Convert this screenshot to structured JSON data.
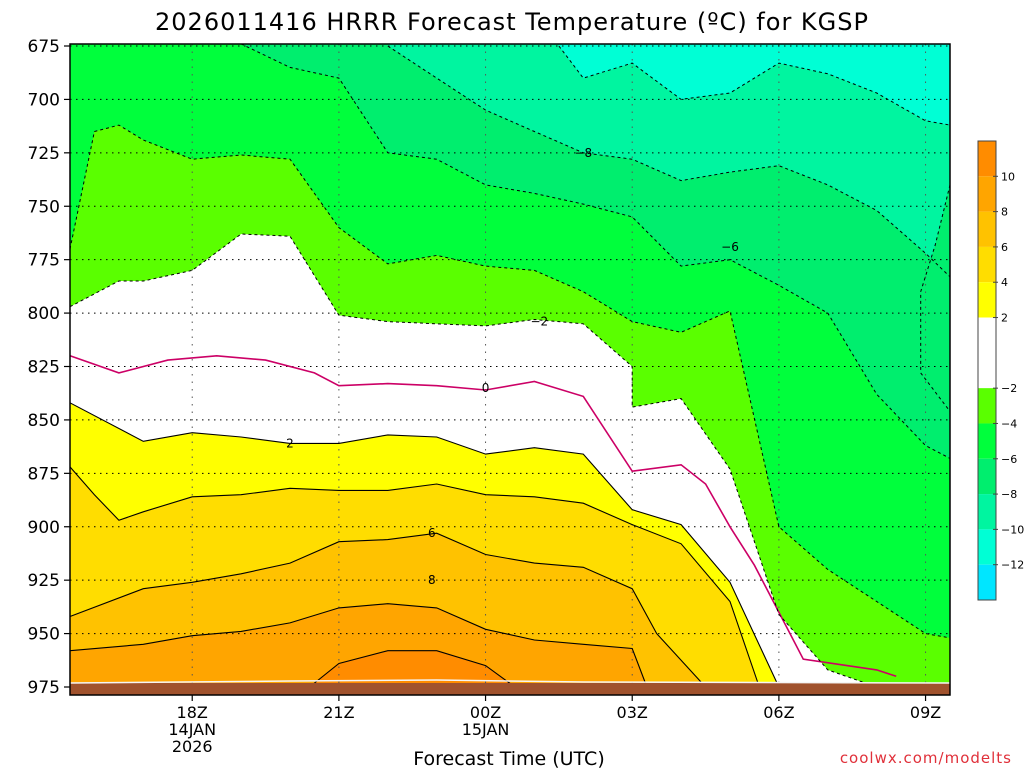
{
  "chart_data": {
    "type": "contour",
    "title": "2026011416 HRRR Forecast Temperature (ºC) for KGSP",
    "xlabel": "Forecast Time (UTC)",
    "ylabel": "",
    "credit": "coolwx.com/modelts",
    "y_axis": {
      "ticks": [
        675,
        700,
        725,
        750,
        775,
        800,
        825,
        850,
        875,
        900,
        925,
        950,
        975
      ],
      "labels": [
        "675",
        "700",
        "725",
        "750",
        "775",
        "800",
        "825",
        "850",
        "875",
        "900",
        "925",
        "950",
        "975"
      ],
      "range": [
        975,
        675
      ]
    },
    "x_axis": {
      "range_hours": [
        15.5,
        33.5
      ],
      "ticks": [
        {
          "hour": 18,
          "lines": [
            "18Z",
            "14JAN",
            "2026"
          ]
        },
        {
          "hour": 21,
          "lines": [
            "21Z"
          ]
        },
        {
          "hour": 24,
          "lines": [
            "00Z",
            "15JAN"
          ]
        },
        {
          "hour": 27,
          "lines": [
            "03Z"
          ]
        },
        {
          "hour": 30,
          "lines": [
            "06Z"
          ]
        },
        {
          "hour": 33,
          "lines": [
            "09Z"
          ]
        }
      ]
    },
    "grid": true,
    "colorbar": {
      "min": -14,
      "max": 12,
      "labels": [
        "10",
        "8",
        "6",
        "4",
        "2",
        "−2",
        "−4",
        "−6",
        "−8",
        "−10",
        "−12"
      ],
      "bins": [
        {
          "from": 10,
          "to": 12,
          "color": "#ff8c00"
        },
        {
          "from": 8,
          "to": 10,
          "color": "#ffa500"
        },
        {
          "from": 6,
          "to": 8,
          "color": "#ffc200"
        },
        {
          "from": 4,
          "to": 6,
          "color": "#ffdd00"
        },
        {
          "from": 2,
          "to": 4,
          "color": "#ffff00"
        },
        {
          "from": -2,
          "to": 2,
          "color": "#ffffff"
        },
        {
          "from": -4,
          "to": -2,
          "color": "#5aff00"
        },
        {
          "from": -6,
          "to": -4,
          "color": "#00ff3c"
        },
        {
          "from": -8,
          "to": -6,
          "color": "#00ee6e"
        },
        {
          "from": -10,
          "to": -8,
          "color": "#00f5a0"
        },
        {
          "from": -12,
          "to": -10,
          "color": "#00ffd5"
        },
        {
          "from": -14,
          "to": -12,
          "color": "#00e6ff"
        }
      ]
    },
    "contours": [
      {
        "level": 8,
        "style": "solid",
        "label_at": {
          "hour": 22.9,
          "pressure": 925
        },
        "points": [
          [
            15.5,
            958
          ],
          [
            17,
            955
          ],
          [
            18,
            951
          ],
          [
            19,
            949
          ],
          [
            20,
            945
          ],
          [
            21,
            938
          ],
          [
            22,
            936
          ],
          [
            23,
            938
          ],
          [
            24,
            948
          ],
          [
            25,
            953
          ],
          [
            26,
            955
          ],
          [
            27,
            957
          ],
          [
            27.3,
            975
          ]
        ]
      },
      {
        "level": 6,
        "style": "solid",
        "label_at": {
          "hour": 22.9,
          "pressure": 903
        },
        "points": [
          [
            15.5,
            942
          ],
          [
            17,
            929
          ],
          [
            18,
            926
          ],
          [
            19,
            922
          ],
          [
            20,
            917
          ],
          [
            21,
            907
          ],
          [
            22,
            906
          ],
          [
            23,
            903
          ],
          [
            24,
            913
          ],
          [
            25,
            917
          ],
          [
            26,
            919
          ],
          [
            27,
            929
          ],
          [
            27.5,
            950
          ],
          [
            28.5,
            975
          ]
        ]
      },
      {
        "level": 4,
        "style": "solid",
        "label_at": null,
        "points": [
          [
            15.5,
            872
          ],
          [
            16,
            885
          ],
          [
            16.5,
            897
          ],
          [
            17,
            893
          ],
          [
            18,
            886
          ],
          [
            19,
            885
          ],
          [
            20,
            882
          ],
          [
            21,
            883
          ],
          [
            22,
            883
          ],
          [
            23,
            880
          ],
          [
            24,
            885
          ],
          [
            25,
            886
          ],
          [
            26,
            889
          ],
          [
            27,
            899
          ],
          [
            28,
            908
          ],
          [
            29,
            935
          ],
          [
            29.6,
            975
          ]
        ]
      },
      {
        "level": 2,
        "style": "solid",
        "label_at": {
          "hour": 20,
          "pressure": 861
        },
        "points": [
          [
            15.5,
            842
          ],
          [
            17,
            860
          ],
          [
            18,
            856
          ],
          [
            19,
            858
          ],
          [
            20,
            861
          ],
          [
            21,
            861
          ],
          [
            22,
            857
          ],
          [
            23,
            858
          ],
          [
            24,
            866
          ],
          [
            25,
            863
          ],
          [
            26,
            866
          ],
          [
            27,
            892
          ],
          [
            28,
            899
          ],
          [
            29,
            926
          ],
          [
            30,
            975
          ]
        ]
      },
      {
        "level": 0,
        "style": "magenta",
        "label_at": {
          "hour": 24,
          "pressure": 835
        },
        "points": [
          [
            15.5,
            820
          ],
          [
            16.5,
            828
          ],
          [
            17.5,
            822
          ],
          [
            18.5,
            820
          ],
          [
            19.5,
            822
          ],
          [
            20.5,
            828
          ],
          [
            21,
            834
          ],
          [
            22,
            833
          ],
          [
            23,
            834
          ],
          [
            24,
            836
          ],
          [
            25,
            832
          ],
          [
            26,
            839
          ],
          [
            27,
            874
          ],
          [
            28,
            871
          ],
          [
            28.5,
            880
          ],
          [
            29,
            900
          ],
          [
            29.5,
            918
          ],
          [
            30,
            940
          ],
          [
            30.5,
            962
          ],
          [
            32,
            967
          ],
          [
            32.4,
            970
          ]
        ]
      },
      {
        "level": -2,
        "style": "dashed",
        "label_at": {
          "hour": 25.1,
          "pressure": 804
        },
        "points": [
          [
            15.5,
            797
          ],
          [
            16.5,
            785
          ],
          [
            17,
            785
          ],
          [
            18,
            780
          ],
          [
            19,
            763
          ],
          [
            20,
            764
          ],
          [
            21,
            801
          ],
          [
            22,
            804
          ],
          [
            23,
            805
          ],
          [
            24,
            806
          ],
          [
            25,
            803
          ],
          [
            26,
            805
          ],
          [
            27,
            825
          ],
          [
            27,
            844
          ],
          [
            28,
            840
          ],
          [
            29,
            873
          ],
          [
            30,
            941
          ],
          [
            31,
            967
          ],
          [
            32,
            975
          ]
        ]
      },
      {
        "level": -4,
        "style": "dashed",
        "label_at": null,
        "points": [
          [
            15.5,
            770
          ],
          [
            16,
            715
          ],
          [
            16.5,
            712
          ],
          [
            17,
            719
          ],
          [
            18,
            728
          ],
          [
            19,
            726
          ],
          [
            20,
            728
          ],
          [
            21,
            760
          ],
          [
            22,
            777
          ],
          [
            23,
            773
          ],
          [
            24,
            778
          ],
          [
            25,
            780
          ],
          [
            26,
            790
          ],
          [
            27,
            804
          ],
          [
            28,
            809
          ],
          [
            29,
            799
          ],
          [
            30,
            900
          ],
          [
            31,
            920
          ],
          [
            32,
            935
          ],
          [
            33,
            950
          ],
          [
            33.5,
            952
          ]
        ]
      },
      {
        "level": -6,
        "style": "dashed",
        "label_at": {
          "hour": 29,
          "pressure": 769
        },
        "points": [
          [
            19,
            674
          ],
          [
            20,
            685
          ],
          [
            21,
            690
          ],
          [
            22,
            725
          ],
          [
            23,
            728
          ],
          [
            24,
            740
          ],
          [
            25,
            744
          ],
          [
            26,
            749
          ],
          [
            27,
            755
          ],
          [
            28,
            778
          ],
          [
            29,
            775
          ],
          [
            30,
            787
          ],
          [
            31,
            800
          ],
          [
            32,
            838
          ],
          [
            33,
            862
          ],
          [
            33.5,
            868
          ]
        ]
      },
      {
        "level": -8,
        "style": "dashed",
        "label_at": {
          "hour": 26,
          "pressure": 725
        },
        "points": [
          [
            22,
            675
          ],
          [
            23,
            690
          ],
          [
            24,
            705
          ],
          [
            25,
            715
          ],
          [
            26,
            725
          ],
          [
            27,
            728
          ],
          [
            28,
            738
          ],
          [
            29,
            734
          ],
          [
            30,
            731
          ],
          [
            31,
            740
          ],
          [
            32,
            752
          ],
          [
            33,
            772
          ],
          [
            33.5,
            783
          ]
        ]
      },
      {
        "level": -10,
        "style": "dashed",
        "label_at": null,
        "points": [
          [
            25.5,
            675
          ],
          [
            26,
            690
          ],
          [
            27,
            683
          ],
          [
            28,
            700
          ],
          [
            29,
            697
          ],
          [
            30,
            683
          ],
          [
            31,
            688
          ],
          [
            32,
            697
          ],
          [
            33,
            710
          ],
          [
            33.5,
            712
          ]
        ]
      },
      {
        "level": -6,
        "style": "dashed",
        "label_at": null,
        "points": [
          [
            33.5,
            740
          ],
          [
            33.2,
            768
          ],
          [
            32.9,
            790
          ],
          [
            32.9,
            828
          ],
          [
            33.5,
            846
          ]
        ]
      }
    ]
  }
}
